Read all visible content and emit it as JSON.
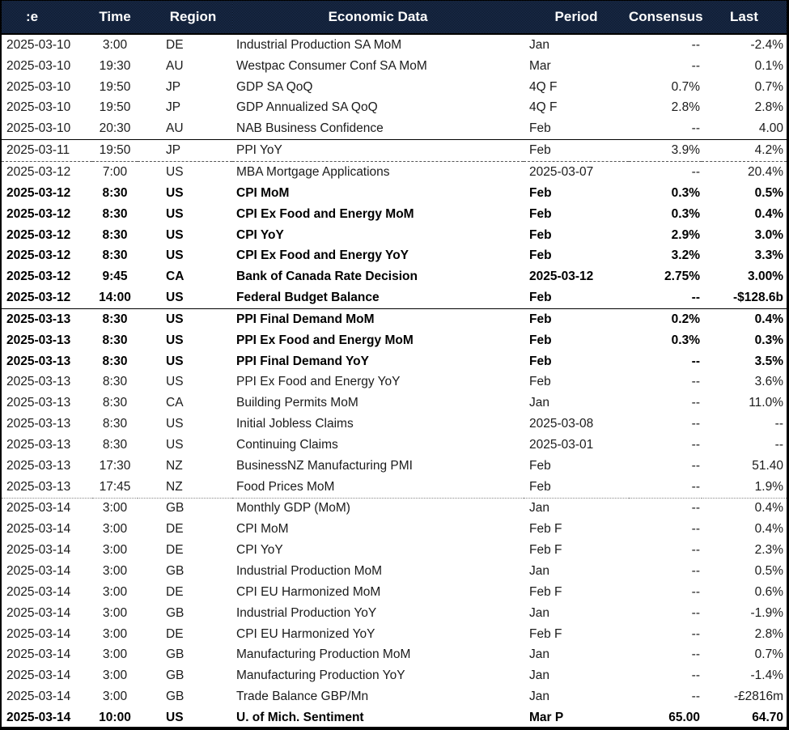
{
  "colors": {
    "header_bg_light": "#1e3357",
    "header_bg_dark": "#0a1322",
    "header_text": "#ffffff",
    "row_text": "#1b1b1b",
    "bold_text": "#000000",
    "border": "#000000"
  },
  "table": {
    "columns": [
      {
        "key": "date",
        "label": ":e"
      },
      {
        "key": "time",
        "label": "Time"
      },
      {
        "key": "region",
        "label": "Region"
      },
      {
        "key": "event",
        "label": "Economic Data"
      },
      {
        "key": "period",
        "label": "Period"
      },
      {
        "key": "consensus",
        "label": "Consensus"
      },
      {
        "key": "last",
        "label": "Last"
      }
    ],
    "rows": [
      {
        "date": "2025-03-10",
        "time": "3:00",
        "region": "DE",
        "event": "Industrial Production SA MoM",
        "period": "Jan",
        "consensus": "--",
        "last": "-2.4%",
        "bold": false,
        "sep": "none"
      },
      {
        "date": "2025-03-10",
        "time": "19:30",
        "region": "AU",
        "event": "Westpac Consumer Conf SA MoM",
        "period": "Mar",
        "consensus": "--",
        "last": "0.1%",
        "bold": false,
        "sep": "none"
      },
      {
        "date": "2025-03-10",
        "time": "19:50",
        "region": "JP",
        "event": "GDP SA QoQ",
        "period": "4Q F",
        "consensus": "0.7%",
        "last": "0.7%",
        "bold": false,
        "sep": "none"
      },
      {
        "date": "2025-03-10",
        "time": "19:50",
        "region": "JP",
        "event": "GDP Annualized SA QoQ",
        "period": "4Q F",
        "consensus": "2.8%",
        "last": "2.8%",
        "bold": false,
        "sep": "none"
      },
      {
        "date": "2025-03-10",
        "time": "20:30",
        "region": "AU",
        "event": "NAB Business Confidence",
        "period": "Feb",
        "consensus": "--",
        "last": "4.00",
        "bold": false,
        "sep": "none"
      },
      {
        "date": "2025-03-11",
        "time": "19:50",
        "region": "JP",
        "event": "PPI YoY",
        "period": "Feb",
        "consensus": "3.9%",
        "last": "4.2%",
        "bold": false,
        "sep": "solid"
      },
      {
        "date": "2025-03-12",
        "time": "7:00",
        "region": "US",
        "event": "MBA Mortgage Applications",
        "period": "2025-03-07",
        "consensus": "--",
        "last": "20.4%",
        "bold": false,
        "sep": "dashed"
      },
      {
        "date": "2025-03-12",
        "time": "8:30",
        "region": "US",
        "event": "CPI MoM",
        "period": "Feb",
        "consensus": "0.3%",
        "last": "0.5%",
        "bold": true,
        "sep": "none"
      },
      {
        "date": "2025-03-12",
        "time": "8:30",
        "region": "US",
        "event": "CPI Ex Food and Energy MoM",
        "period": "Feb",
        "consensus": "0.3%",
        "last": "0.4%",
        "bold": true,
        "sep": "none"
      },
      {
        "date": "2025-03-12",
        "time": "8:30",
        "region": "US",
        "event": "CPI YoY",
        "period": "Feb",
        "consensus": "2.9%",
        "last": "3.0%",
        "bold": true,
        "sep": "none"
      },
      {
        "date": "2025-03-12",
        "time": "8:30",
        "region": "US",
        "event": "CPI Ex Food and Energy YoY",
        "period": "Feb",
        "consensus": "3.2%",
        "last": "3.3%",
        "bold": true,
        "sep": "none"
      },
      {
        "date": "2025-03-12",
        "time": "9:45",
        "region": "CA",
        "event": "Bank of Canada Rate Decision",
        "period": "2025-03-12",
        "consensus": "2.75%",
        "last": "3.00%",
        "bold": true,
        "sep": "none"
      },
      {
        "date": "2025-03-12",
        "time": "14:00",
        "region": "US",
        "event": "Federal Budget Balance",
        "period": "Feb",
        "consensus": "--",
        "last": "-$128.6b",
        "bold": true,
        "sep": "none"
      },
      {
        "date": "2025-03-13",
        "time": "8:30",
        "region": "US",
        "event": "PPI Final Demand MoM",
        "period": "Feb",
        "consensus": "0.2%",
        "last": "0.4%",
        "bold": true,
        "sep": "solid"
      },
      {
        "date": "2025-03-13",
        "time": "8:30",
        "region": "US",
        "event": "PPI Ex Food and Energy MoM",
        "period": "Feb",
        "consensus": "0.3%",
        "last": "0.3%",
        "bold": true,
        "sep": "none"
      },
      {
        "date": "2025-03-13",
        "time": "8:30",
        "region": "US",
        "event": "PPI Final Demand YoY",
        "period": "Feb",
        "consensus": "--",
        "last": "3.5%",
        "bold": true,
        "sep": "none"
      },
      {
        "date": "2025-03-13",
        "time": "8:30",
        "region": "US",
        "event": "PPI Ex Food and Energy YoY",
        "period": "Feb",
        "consensus": "--",
        "last": "3.6%",
        "bold": false,
        "sep": "none"
      },
      {
        "date": "2025-03-13",
        "time": "8:30",
        "region": "CA",
        "event": "Building Permits MoM",
        "period": "Jan",
        "consensus": "--",
        "last": "11.0%",
        "bold": false,
        "sep": "none"
      },
      {
        "date": "2025-03-13",
        "time": "8:30",
        "region": "US",
        "event": "Initial Jobless Claims",
        "period": "2025-03-08",
        "consensus": "--",
        "last": "--",
        "bold": false,
        "sep": "none"
      },
      {
        "date": "2025-03-13",
        "time": "8:30",
        "region": "US",
        "event": "Continuing Claims",
        "period": "2025-03-01",
        "consensus": "--",
        "last": "--",
        "bold": false,
        "sep": "none"
      },
      {
        "date": "2025-03-13",
        "time": "17:30",
        "region": "NZ",
        "event": "BusinessNZ Manufacturing PMI",
        "period": "Feb",
        "consensus": "--",
        "last": "51.40",
        "bold": false,
        "sep": "none"
      },
      {
        "date": "2025-03-13",
        "time": "17:45",
        "region": "NZ",
        "event": "Food Prices MoM",
        "period": "Feb",
        "consensus": "--",
        "last": "1.9%",
        "bold": false,
        "sep": "none"
      },
      {
        "date": "2025-03-14",
        "time": "3:00",
        "region": "GB",
        "event": "Monthly GDP (MoM)",
        "period": "Jan",
        "consensus": "--",
        "last": "0.4%",
        "bold": false,
        "sep": "dotted"
      },
      {
        "date": "2025-03-14",
        "time": "3:00",
        "region": "DE",
        "event": "CPI MoM",
        "period": "Feb F",
        "consensus": "--",
        "last": "0.4%",
        "bold": false,
        "sep": "none"
      },
      {
        "date": "2025-03-14",
        "time": "3:00",
        "region": "DE",
        "event": "CPI YoY",
        "period": "Feb F",
        "consensus": "--",
        "last": "2.3%",
        "bold": false,
        "sep": "none"
      },
      {
        "date": "2025-03-14",
        "time": "3:00",
        "region": "GB",
        "event": "Industrial Production MoM",
        "period": "Jan",
        "consensus": "--",
        "last": "0.5%",
        "bold": false,
        "sep": "none"
      },
      {
        "date": "2025-03-14",
        "time": "3:00",
        "region": "DE",
        "event": "CPI EU Harmonized MoM",
        "period": "Feb F",
        "consensus": "--",
        "last": "0.6%",
        "bold": false,
        "sep": "none"
      },
      {
        "date": "2025-03-14",
        "time": "3:00",
        "region": "GB",
        "event": "Industrial Production YoY",
        "period": "Jan",
        "consensus": "--",
        "last": "-1.9%",
        "bold": false,
        "sep": "none"
      },
      {
        "date": "2025-03-14",
        "time": "3:00",
        "region": "DE",
        "event": "CPI EU Harmonized YoY",
        "period": "Feb F",
        "consensus": "--",
        "last": "2.8%",
        "bold": false,
        "sep": "none"
      },
      {
        "date": "2025-03-14",
        "time": "3:00",
        "region": "GB",
        "event": "Manufacturing Production MoM",
        "period": "Jan",
        "consensus": "--",
        "last": "0.7%",
        "bold": false,
        "sep": "none"
      },
      {
        "date": "2025-03-14",
        "time": "3:00",
        "region": "GB",
        "event": "Manufacturing Production YoY",
        "period": "Jan",
        "consensus": "--",
        "last": "-1.4%",
        "bold": false,
        "sep": "none"
      },
      {
        "date": "2025-03-14",
        "time": "3:00",
        "region": "GB",
        "event": "Trade Balance GBP/Mn",
        "period": "Jan",
        "consensus": "--",
        "last": "-£2816m",
        "bold": false,
        "sep": "none"
      },
      {
        "date": "2025-03-14",
        "time": "10:00",
        "region": "US",
        "event": "U. of Mich. Sentiment",
        "period": "Mar P",
        "consensus": "65.00",
        "last": "64.70",
        "bold": true,
        "sep": "none"
      }
    ]
  }
}
